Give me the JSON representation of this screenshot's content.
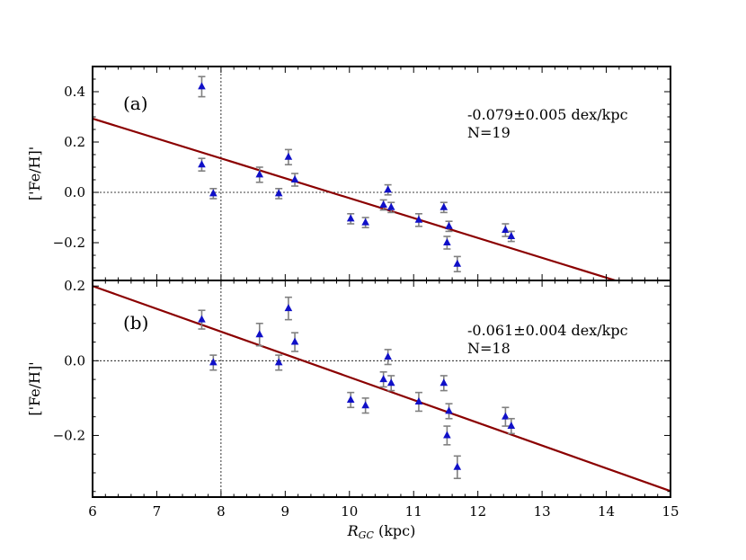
{
  "chart_data": [
    {
      "type": "scatter",
      "panel_label": "(a)",
      "ylabel": "['Fe/H]'",
      "xlabel": "",
      "xlim": [
        6,
        15
      ],
      "ylim": [
        -0.35,
        0.5
      ],
      "yticks": [
        0.4,
        0.2,
        0.0,
        -0.2
      ],
      "ytick_labels": [
        "0.4",
        "0.2",
        "0.0",
        "−0.2"
      ],
      "reference_x": 8.0,
      "reference_y": 0.0,
      "fit": {
        "slope": -0.079,
        "intercept": 0.767
      },
      "annotation_slope": "-0.079±0.005 dex/kpc",
      "annotation_n": "N=19",
      "colors": {
        "points": "#1010c8",
        "errorbars": "#808080",
        "fit": "#8b0000"
      },
      "series": [
        {
          "name": "clusters",
          "points": [
            {
              "x": 7.7,
              "y": 0.42,
              "err": 0.04
            },
            {
              "x": 7.7,
              "y": 0.11,
              "err": 0.025
            },
            {
              "x": 7.88,
              "y": -0.005,
              "err": 0.02
            },
            {
              "x": 8.6,
              "y": 0.07,
              "err": 0.03
            },
            {
              "x": 8.9,
              "y": -0.005,
              "err": 0.02
            },
            {
              "x": 9.05,
              "y": 0.14,
              "err": 0.03
            },
            {
              "x": 9.15,
              "y": 0.05,
              "err": 0.025
            },
            {
              "x": 10.02,
              "y": -0.105,
              "err": 0.02
            },
            {
              "x": 10.25,
              "y": -0.12,
              "err": 0.02
            },
            {
              "x": 10.53,
              "y": -0.05,
              "err": 0.02
            },
            {
              "x": 10.6,
              "y": 0.01,
              "err": 0.02
            },
            {
              "x": 10.65,
              "y": -0.06,
              "err": 0.02
            },
            {
              "x": 11.08,
              "y": -0.11,
              "err": 0.025
            },
            {
              "x": 11.47,
              "y": -0.06,
              "err": 0.02
            },
            {
              "x": 11.52,
              "y": -0.2,
              "err": 0.025
            },
            {
              "x": 11.55,
              "y": -0.135,
              "err": 0.02
            },
            {
              "x": 11.68,
              "y": -0.285,
              "err": 0.03
            },
            {
              "x": 12.43,
              "y": -0.15,
              "err": 0.025
            },
            {
              "x": 12.52,
              "y": -0.175,
              "err": 0.02
            }
          ]
        }
      ]
    },
    {
      "type": "scatter",
      "panel_label": "(b)",
      "ylabel": "['Fe/H]'",
      "xlabel": "R_GC (kpc)",
      "xlabel_main": "R",
      "xlabel_sub": "GC",
      "xlabel_unit": " (kpc)",
      "xlim": [
        6,
        15
      ],
      "ylim": [
        -0.365,
        0.215
      ],
      "xticks": [
        6,
        7,
        8,
        9,
        10,
        11,
        12,
        13,
        14,
        15
      ],
      "xtick_labels": [
        "6",
        "7",
        "8",
        "9",
        "10",
        "11",
        "12",
        "13",
        "14",
        "15"
      ],
      "yticks": [
        0.2,
        0.0,
        -0.2
      ],
      "ytick_labels": [
        "0.2",
        "0.0",
        "−0.2"
      ],
      "reference_x": 8.0,
      "reference_y": 0.0,
      "fit": {
        "slope": -0.061,
        "intercept": 0.566
      },
      "annotation_slope": "-0.061±0.004 dex/kpc",
      "annotation_n": "N=18",
      "colors": {
        "points": "#1010c8",
        "errorbars": "#808080",
        "fit": "#8b0000"
      },
      "series": [
        {
          "name": "clusters",
          "points": [
            {
              "x": 7.7,
              "y": 0.11,
              "err": 0.025
            },
            {
              "x": 7.88,
              "y": -0.005,
              "err": 0.02
            },
            {
              "x": 8.6,
              "y": 0.07,
              "err": 0.03
            },
            {
              "x": 8.9,
              "y": -0.005,
              "err": 0.02
            },
            {
              "x": 9.05,
              "y": 0.14,
              "err": 0.03
            },
            {
              "x": 9.15,
              "y": 0.05,
              "err": 0.025
            },
            {
              "x": 10.02,
              "y": -0.105,
              "err": 0.02
            },
            {
              "x": 10.25,
              "y": -0.12,
              "err": 0.02
            },
            {
              "x": 10.53,
              "y": -0.05,
              "err": 0.02
            },
            {
              "x": 10.6,
              "y": 0.01,
              "err": 0.02
            },
            {
              "x": 10.65,
              "y": -0.06,
              "err": 0.02
            },
            {
              "x": 11.08,
              "y": -0.11,
              "err": 0.025
            },
            {
              "x": 11.47,
              "y": -0.06,
              "err": 0.02
            },
            {
              "x": 11.52,
              "y": -0.2,
              "err": 0.025
            },
            {
              "x": 11.55,
              "y": -0.135,
              "err": 0.02
            },
            {
              "x": 11.68,
              "y": -0.285,
              "err": 0.03
            },
            {
              "x": 12.43,
              "y": -0.15,
              "err": 0.025
            },
            {
              "x": 12.52,
              "y": -0.175,
              "err": 0.02
            }
          ]
        }
      ]
    }
  ]
}
